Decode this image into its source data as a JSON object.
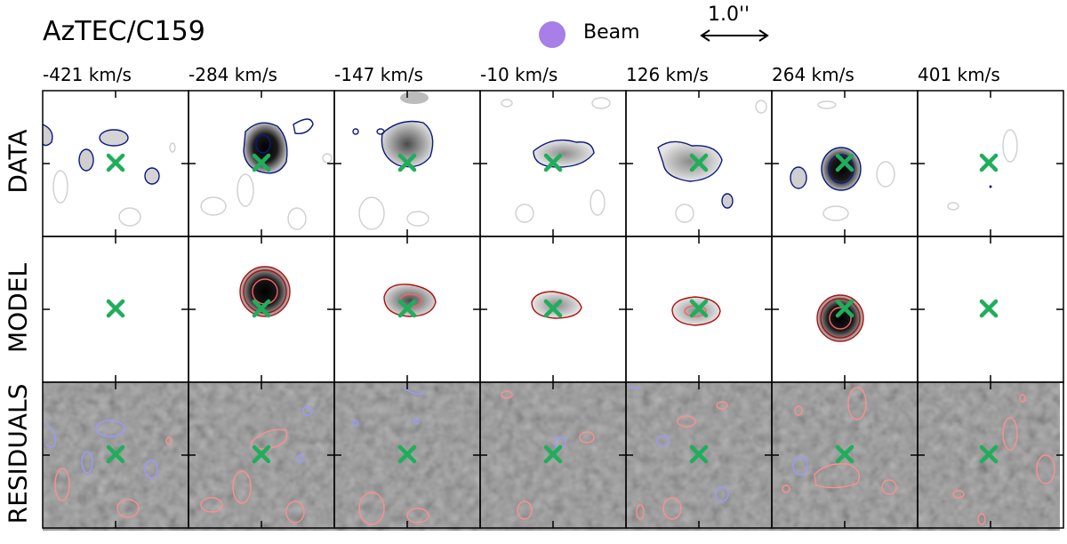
{
  "header": {
    "title": "AzTEC/C159",
    "beam_label": "Beam",
    "scale_label": "1.0''"
  },
  "columns": [
    "-421 km/s",
    "-284 km/s",
    "-147 km/s",
    "-10 km/s",
    "126 km/s",
    "264 km/s",
    "401 km/s"
  ],
  "rows": [
    "DATA",
    "MODEL",
    "RESIDUALS"
  ],
  "colors": {
    "beam": "#a77fe6",
    "marker": "#1fae5b",
    "data_contour": "#0d1a80",
    "data_neg_contour": "#cfcfcf",
    "model_contour": "#b01010",
    "resid_pos_contour": "#ff8f8f",
    "resid_neg_contour": "#9a9aff",
    "resid_background": "#7a7a7a"
  },
  "icons": {
    "marker": "x-cross-icon",
    "scale": "double-arrow-icon"
  }
}
